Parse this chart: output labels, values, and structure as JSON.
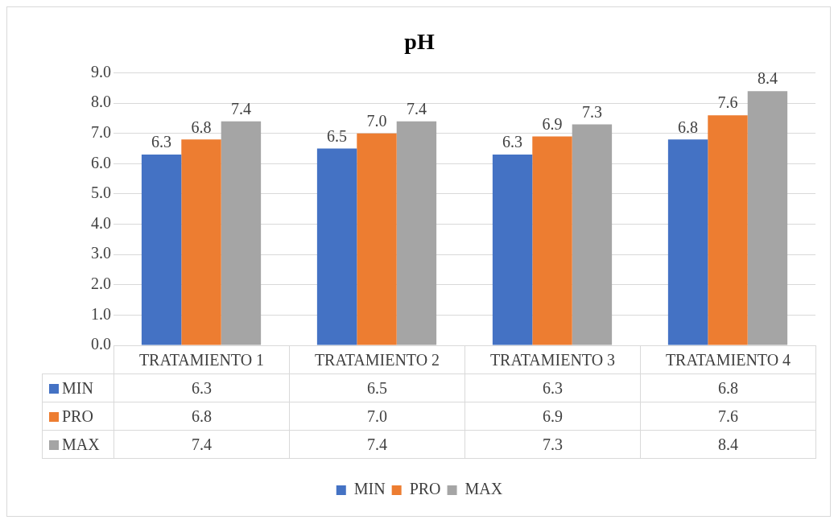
{
  "chart_data": {
    "type": "bar",
    "title": "pH",
    "categories": [
      "TRATAMIENTO 1",
      "TRATAMIENTO 2",
      "TRATAMIENTO 3",
      "TRATAMIENTO 4"
    ],
    "series": [
      {
        "name": "MIN",
        "color": "#4472c4",
        "values": [
          6.3,
          6.5,
          6.3,
          6.8
        ],
        "value_labels": [
          "6.3",
          "6.5",
          "6.3",
          "6.8"
        ]
      },
      {
        "name": "PRO",
        "color": "#ed7d31",
        "values": [
          6.8,
          7.0,
          6.9,
          7.6
        ],
        "value_labels": [
          "6.8",
          "7.0",
          "6.9",
          "7.6"
        ]
      },
      {
        "name": "MAX",
        "color": "#a5a5a5",
        "values": [
          7.4,
          7.4,
          7.3,
          8.4
        ],
        "value_labels": [
          "7.4",
          "7.4",
          "7.3",
          "8.4"
        ]
      }
    ],
    "ylim": [
      0,
      9
    ],
    "yticks": [
      {
        "value": 0,
        "label": "0.0"
      },
      {
        "value": 1,
        "label": "1.0"
      },
      {
        "value": 2,
        "label": "2.0"
      },
      {
        "value": 3,
        "label": "3.0"
      },
      {
        "value": 4,
        "label": "4.0"
      },
      {
        "value": 5,
        "label": "5.0"
      },
      {
        "value": 6,
        "label": "6.0"
      },
      {
        "value": 7,
        "label": "7.0"
      },
      {
        "value": 8,
        "label": "8.0"
      },
      {
        "value": 9,
        "label": "9.0"
      }
    ],
    "grid": "y",
    "legend": "bottom"
  }
}
